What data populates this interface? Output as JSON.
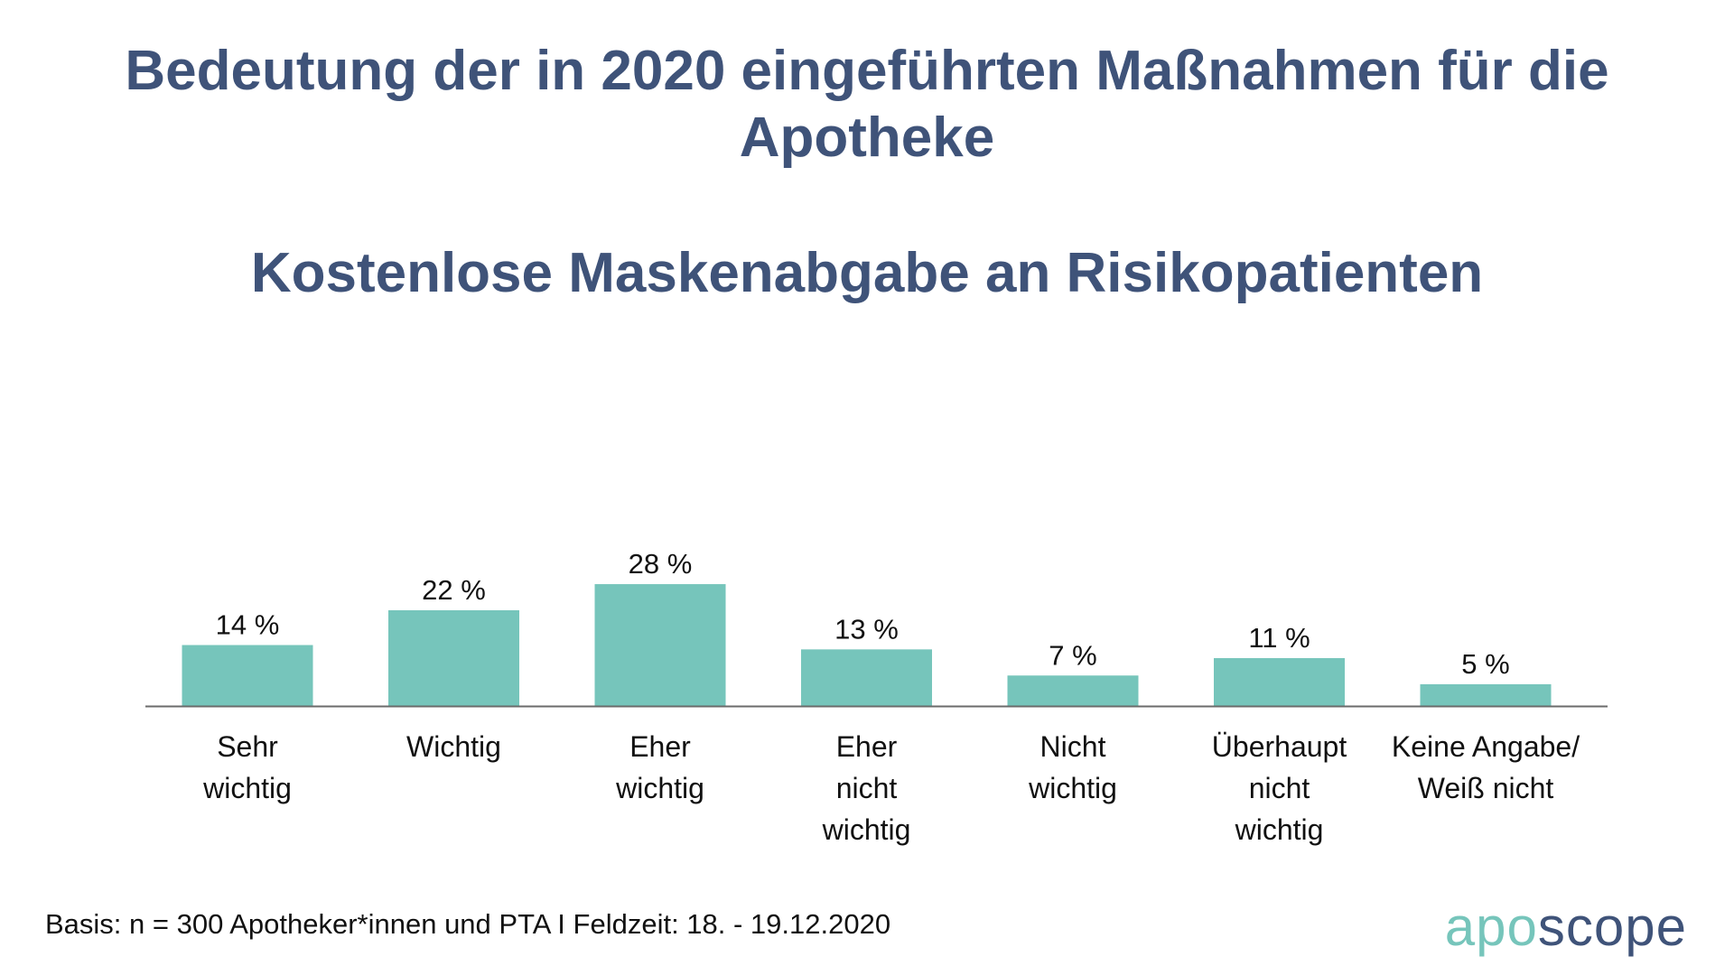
{
  "title": "Bedeutung der in 2020 eingeführten Maßnahmen für die Apotheke",
  "subtitle": "Kostenlose Maskenabgabe an Risikopatienten",
  "footer": "Basis: n = 300 Apotheker*innen und PTA I Feldzeit: 18. - 19.12.2020",
  "logo": {
    "part1": "apo",
    "part2": "scope"
  },
  "colors": {
    "title": "#3f5379",
    "bar": "#76c5bb",
    "axis": "#6b6b6b"
  },
  "chart_data": {
    "type": "bar",
    "title": "Kostenlose Maskenabgabe an Risikopatienten",
    "categories": [
      [
        "Sehr",
        "wichtig"
      ],
      [
        "Wichtig"
      ],
      [
        "Eher",
        "wichtig"
      ],
      [
        "Eher",
        "nicht",
        "wichtig"
      ],
      [
        "Nicht",
        "wichtig"
      ],
      [
        "Überhaupt",
        "nicht",
        "wichtig"
      ],
      [
        "Keine Angabe/",
        "Weiß nicht"
      ]
    ],
    "values": [
      14,
      22,
      28,
      13,
      7,
      11,
      5
    ],
    "labels": [
      "14 %",
      "22 %",
      "28 %",
      "13 %",
      "7 %",
      "11 %",
      "5 %"
    ],
    "unit": "%",
    "ylim": [
      0,
      28
    ],
    "grid": false,
    "xlabel": "",
    "ylabel": ""
  }
}
